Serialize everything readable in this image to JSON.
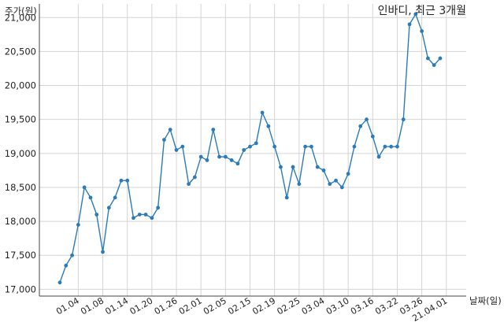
{
  "chart_data": {
    "type": "line",
    "title": "인바디, 최근 3개월",
    "ylabel": "주가(원)",
    "xlabel": "날짜(일)",
    "ylim": [
      16900,
      21200
    ],
    "yticks": [
      17000,
      17500,
      18000,
      18500,
      19000,
      19500,
      20000,
      20500,
      21000
    ],
    "ytick_labels": [
      "17,000",
      "17,500",
      "18,000",
      "18,500",
      "19,000",
      "19,500",
      "20,000",
      "20,500",
      "21,000"
    ],
    "xtick_positions": [
      3,
      7,
      11,
      15,
      19,
      23,
      27,
      31,
      35,
      39,
      43,
      47,
      51,
      55,
      59,
      63
    ],
    "xtick_labels": [
      "01.04",
      "01.08",
      "01.14",
      "01.20",
      "01.26",
      "02.01",
      "02.05",
      "02.15",
      "02.19",
      "02.25",
      "03.04",
      "03.10",
      "03.16",
      "03.22",
      "03.26",
      "21.04.01"
    ],
    "grid": true,
    "color": "#2b7bb9",
    "values": [
      17100,
      17350,
      17500,
      17950,
      18500,
      18350,
      18100,
      17550,
      18200,
      18350,
      18600,
      18600,
      18050,
      18100,
      18100,
      18050,
      18200,
      19200,
      19350,
      19050,
      19100,
      18550,
      18650,
      18950,
      18900,
      19350,
      18950,
      18950,
      18900,
      18850,
      19050,
      19100,
      19150,
      19600,
      19400,
      19100,
      18800,
      18350,
      18800,
      18550,
      19100,
      19100,
      18800,
      18750,
      18550,
      18600,
      18500,
      18700,
      19100,
      19400,
      19500,
      19250,
      18950,
      19100,
      19100,
      19100,
      19500,
      20900,
      21050,
      20800,
      20400,
      20300,
      20400
    ]
  }
}
